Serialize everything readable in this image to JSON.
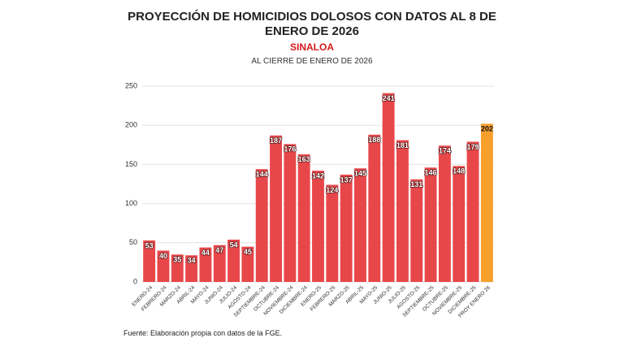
{
  "chart_data": {
    "type": "bar",
    "title": "PROYECCIÓN DE HOMICIDIOS DOLOSOS CON DATOS AL 8 DE ENERO DE 2026",
    "subtitle": "SINALOA",
    "caption": "AL CIERRE DE ENERO DE 2026",
    "source": "Fuente: Elaboración propia con datos de la FGE.",
    "categories": [
      "ENERO-24",
      "FEBRERO-24",
      "MARZO-24",
      "ABRIL-24",
      "MAYO-24",
      "JUNIO-24",
      "JULIO-24",
      "AGOSTO-24",
      "SEPTIEMBRE-24",
      "OCTUBRE-24",
      "NOVIEMBRE-24",
      "DICIEMBRE-24",
      "ENERO-25",
      "FEBRERO-25",
      "MARZO-25",
      "ABRIL-25",
      "MAYO-25",
      "JUNIO-25",
      "JULIO-25",
      "AGOSTO-25",
      "SEPTIEMBRE-25",
      "OCTUBRE-25",
      "NOVIEMBRE-25",
      "DICIEMBRE-25",
      "PROY ENERO 26"
    ],
    "values": [
      53,
      40,
      35,
      34,
      44,
      47,
      54,
      45,
      144,
      187,
      176,
      163,
      142,
      124,
      137,
      145,
      188,
      241,
      181,
      131,
      146,
      174,
      148,
      179,
      202
    ],
    "colors": [
      "#e8474a",
      "#e8474a",
      "#e8474a",
      "#e8474a",
      "#e8474a",
      "#e8474a",
      "#e8474a",
      "#e8474a",
      "#e8474a",
      "#e8474a",
      "#e8474a",
      "#e8474a",
      "#e8474a",
      "#e8474a",
      "#e8474a",
      "#e8474a",
      "#e8474a",
      "#e8474a",
      "#e8474a",
      "#e8474a",
      "#e8474a",
      "#e8474a",
      "#e8474a",
      "#e8474a",
      "#f7a02c"
    ],
    "ylim": [
      0,
      250
    ],
    "yticks": [
      0,
      50,
      100,
      150,
      200,
      250
    ],
    "grid": true
  }
}
